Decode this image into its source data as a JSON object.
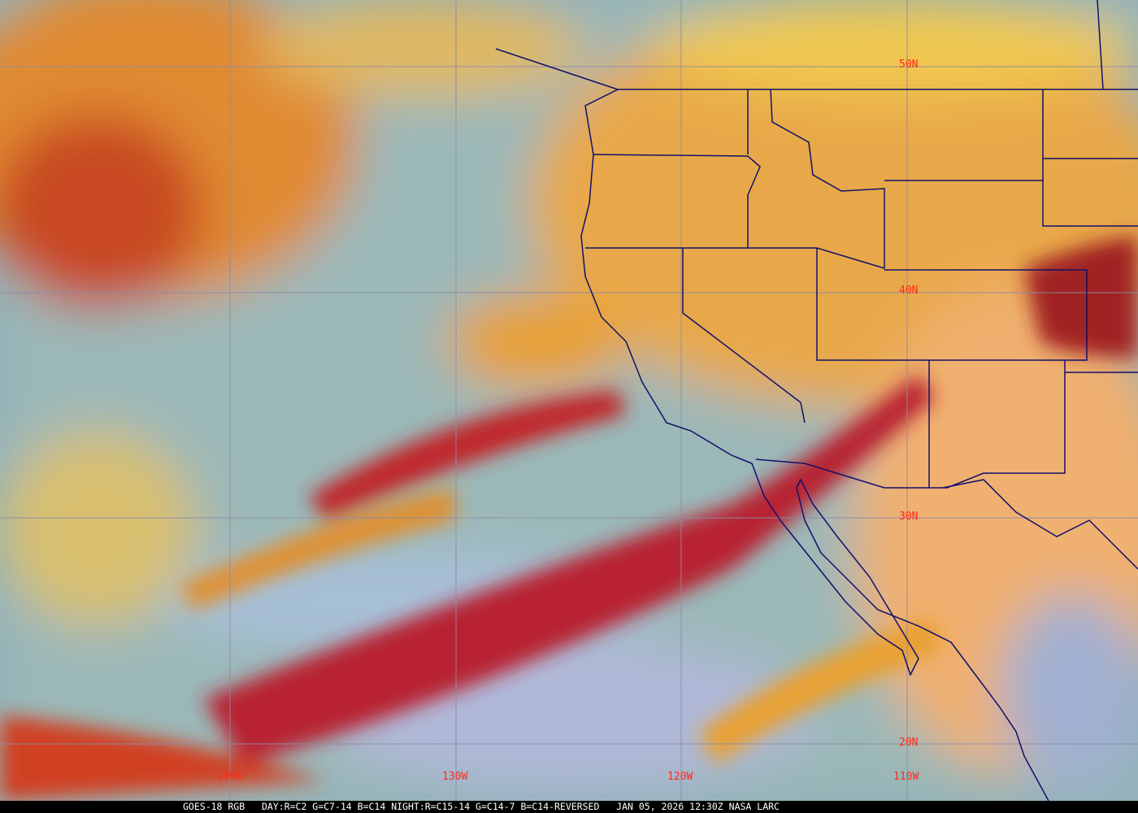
{
  "map": {
    "latitude_labels": [
      "50N",
      "40N",
      "30N",
      "20N"
    ],
    "longitude_labels": [
      "140W",
      "130W",
      "120W",
      "110W"
    ],
    "colors": {
      "ocean_clear": "#8fb0b8",
      "low_cloud": "#e8c060",
      "high_cloud": "#c02020",
      "land": "#e8a048",
      "borders": "#10106a",
      "grid": "#8c8ca8",
      "labels": "#ff2a1a"
    }
  },
  "caption": {
    "product": "GOES-18 RGB",
    "recipe": "DAY:R=C2 G=C7-14 B=C14 NIGHT:R=C15-14 G=C14-7 B=C14-REVERSED",
    "timestamp": "JAN 05, 2026 12:30Z",
    "source": "NASA LARC"
  }
}
